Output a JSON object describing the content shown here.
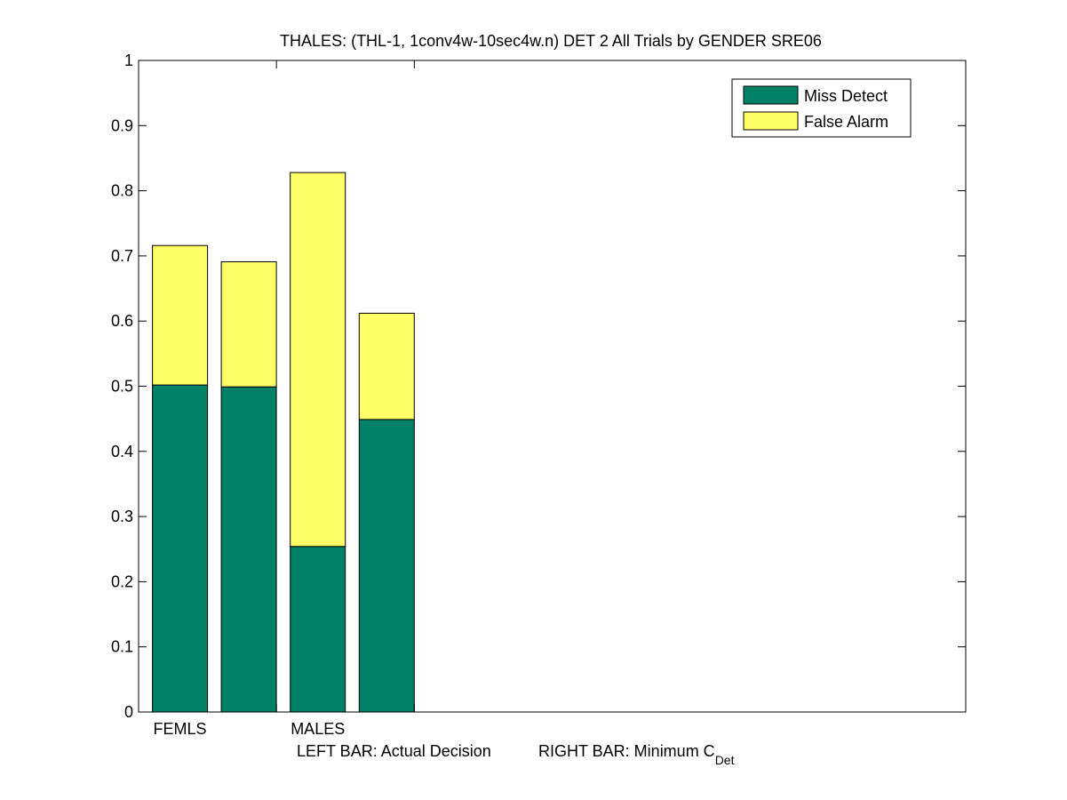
{
  "chart_data": {
    "type": "bar",
    "stacked": true,
    "title": "THALES: (THL-1, 1conv4w-10sec4w.n) DET 2 All Trials by GENDER SRE06",
    "xlabel": {
      "left": "LEFT BAR: Actual Decision",
      "right_main": "RIGHT BAR: Minimum C",
      "right_sub": "Det"
    },
    "ylabel": "",
    "ylim": [
      0,
      1
    ],
    "yticks": [
      "0",
      "0.1",
      "0.2",
      "0.3",
      "0.4",
      "0.5",
      "0.6",
      "0.7",
      "0.8",
      "0.9",
      "1"
    ],
    "groups": [
      "FEMLS",
      "MALES"
    ],
    "bars_per_group": [
      "Actual Decision",
      "Minimum C_Det"
    ],
    "series": [
      {
        "name": "Miss Detect",
        "color": "#008066",
        "values": [
          [
            0.502,
            0.499
          ],
          [
            0.254,
            0.449
          ]
        ]
      },
      {
        "name": "False Alarm",
        "color": "#ffff66",
        "values": [
          [
            0.214,
            0.192
          ],
          [
            0.574,
            0.163
          ]
        ]
      }
    ],
    "legend_position": "top-right",
    "grid": false
  }
}
